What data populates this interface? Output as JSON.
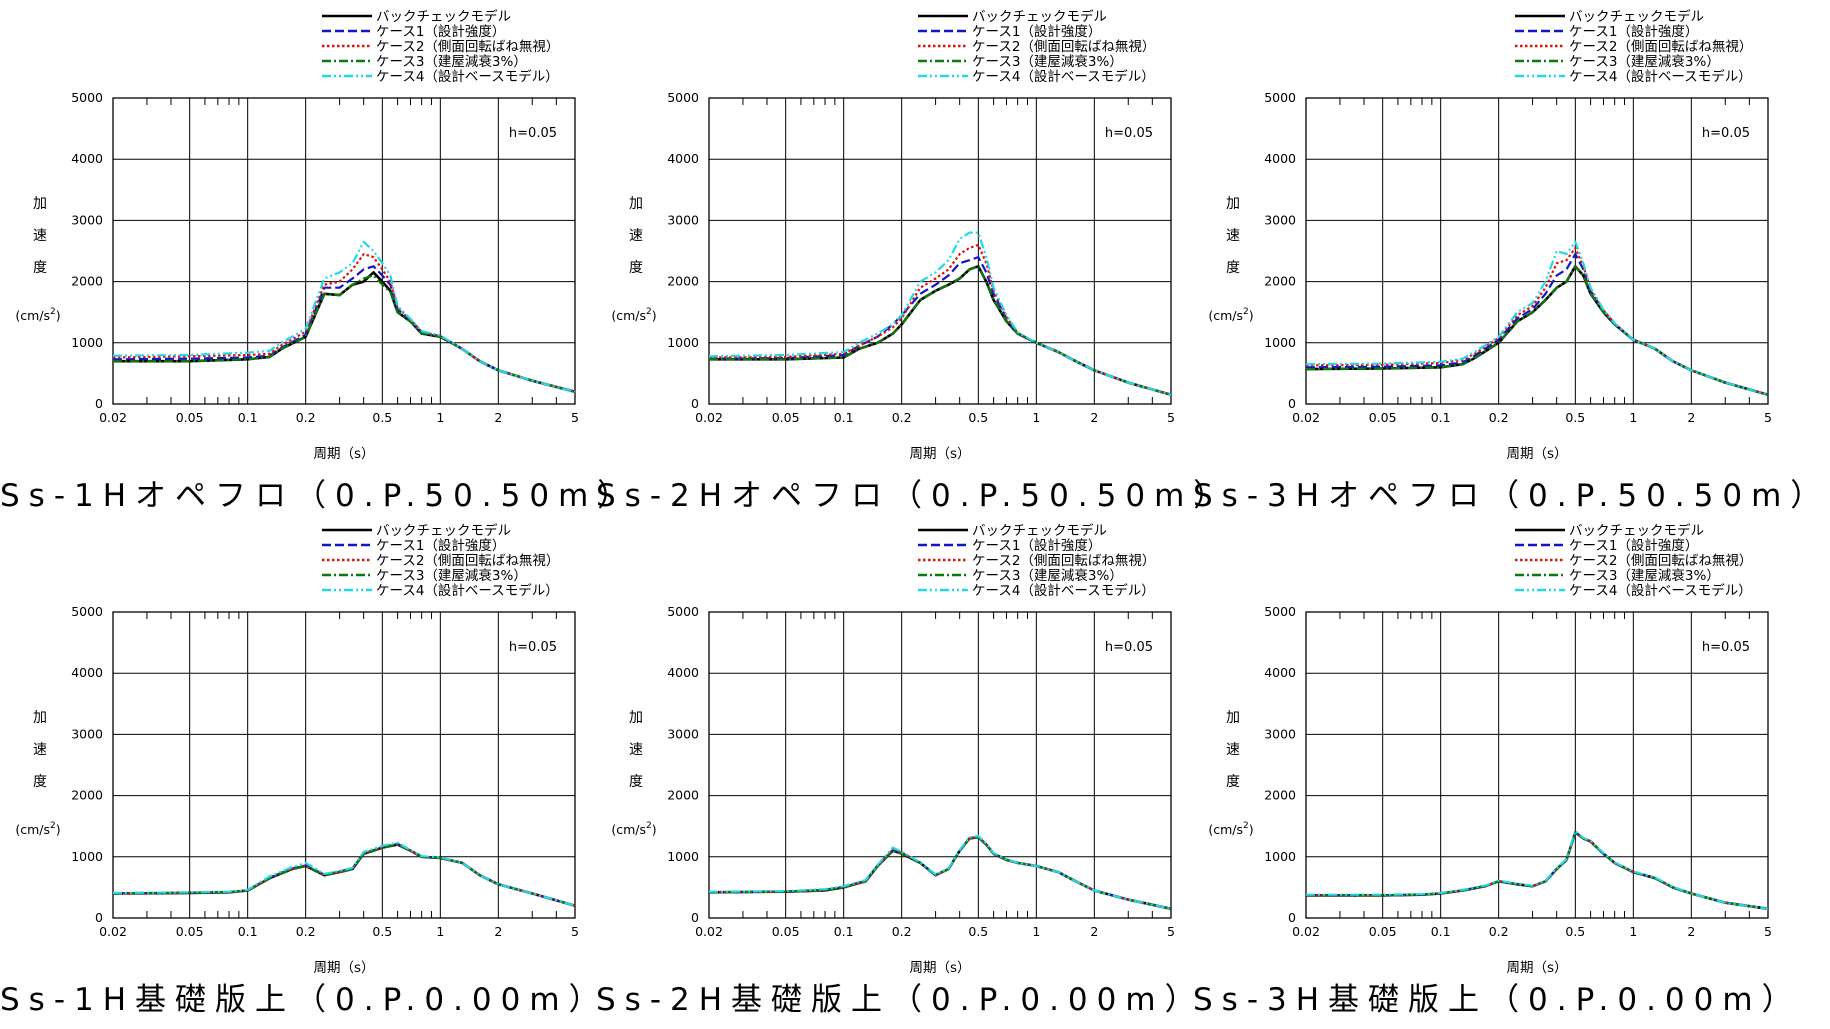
{
  "shared": {
    "legend": [
      {
        "name": "バックチェックモデル",
        "color": "#000000",
        "dash": ""
      },
      {
        "name": "ケース1（設計強度）",
        "color": "#1515c8",
        "dash": "9,4"
      },
      {
        "name": "ケース2（側面回転ばね無視）",
        "color": "#e01010",
        "dash": "2.5,2.5"
      },
      {
        "name": "ケース3（建屋減衰3%）",
        "color": "#0a7a0a",
        "dash": "9,3,2,3"
      },
      {
        "name": "ケース4（設計ベースモデル）",
        "color": "#22d8e8",
        "dash": "9,3,2,3,2,3"
      }
    ],
    "ylabel_chars": [
      "加",
      "速",
      "度"
    ],
    "yunit": "(cm/s",
    "yunit_sup": "2",
    "yunit_close": ")",
    "xlabel": "周期（s）",
    "xticks": [
      0.02,
      0.05,
      0.1,
      0.2,
      0.5,
      1,
      2,
      5
    ],
    "xtick_labels": [
      "0.02",
      "0.05",
      "0.1",
      "0.2",
      "0.5",
      "1",
      "2",
      "5"
    ],
    "yticks": [
      0,
      1000,
      2000,
      3000,
      4000,
      5000
    ],
    "ytick_labels": [
      "0",
      "1000",
      "2000",
      "3000",
      "4000",
      "5000"
    ],
    "xlim": [
      0.02,
      5
    ],
    "ylim": [
      0,
      5000
    ],
    "xscale": "log",
    "grid": true,
    "damping": "h=0.05"
  },
  "panels": [
    {
      "caption": "Ss-1Hオペフロ（0.P.50.50m）"
    },
    {
      "caption": "Ss-2Hオペフロ（0.P.50.50m）"
    },
    {
      "caption": "Ss-3Hオペフロ（0.P.50.50m）"
    },
    {
      "caption": "Ss-1H基礎版上（0.P.0.00m）"
    },
    {
      "caption": "Ss-2H基礎版上（0.P.0.00m）"
    },
    {
      "caption": "Ss-3H基礎版上（0.P.0.00m）"
    }
  ],
  "chart_data": [
    {
      "type": "line",
      "xscale": "log",
      "xlim": [
        0.02,
        5
      ],
      "ylim": [
        0,
        5000
      ],
      "title": "Ss-1Hオペフロ（0.P.50.50m）",
      "xlabel": "周期（s）",
      "ylabel": "加速度(cm/s2)",
      "x": [
        0.02,
        0.05,
        0.1,
        0.13,
        0.15,
        0.2,
        0.25,
        0.3,
        0.35,
        0.4,
        0.45,
        0.5,
        0.55,
        0.6,
        0.7,
        0.8,
        1,
        1.3,
        1.6,
        2,
        3,
        5
      ],
      "series": [
        {
          "name": "バックチェックモデル",
          "values": [
            700,
            700,
            730,
            770,
            900,
            1100,
            1800,
            1780,
            1950,
            2000,
            2150,
            2000,
            1850,
            1500,
            1350,
            1150,
            1100,
            900,
            700,
            550,
            380,
            200
          ]
        },
        {
          "name": "ケース1（設計強度）",
          "values": [
            730,
            740,
            760,
            790,
            920,
            1130,
            1900,
            1900,
            2050,
            2200,
            2250,
            2100,
            1950,
            1550,
            1370,
            1170,
            1110,
            900,
            700,
            550,
            380,
            200
          ]
        },
        {
          "name": "ケース2（側面回転ばね無視）",
          "values": [
            760,
            780,
            800,
            820,
            960,
            1180,
            1950,
            2000,
            2200,
            2450,
            2400,
            2200,
            2000,
            1580,
            1380,
            1180,
            1110,
            900,
            700,
            550,
            380,
            200
          ]
        },
        {
          "name": "ケース3（建屋減衰3%）",
          "values": [
            700,
            700,
            730,
            770,
            900,
            1100,
            1800,
            1780,
            1950,
            2050,
            2100,
            1950,
            1830,
            1500,
            1350,
            1150,
            1100,
            900,
            700,
            550,
            380,
            200
          ]
        },
        {
          "name": "ケース4（設計ベースモデル）",
          "values": [
            790,
            800,
            840,
            870,
            1000,
            1230,
            2050,
            2150,
            2300,
            2650,
            2500,
            2300,
            2100,
            1600,
            1390,
            1190,
            1120,
            900,
            700,
            550,
            380,
            200
          ]
        }
      ]
    },
    {
      "type": "line",
      "xscale": "log",
      "xlim": [
        0.02,
        5
      ],
      "ylim": [
        0,
        5000
      ],
      "title": "Ss-2Hオペフロ（0.P.50.50m）",
      "xlabel": "周期（s）",
      "ylabel": "加速度(cm/s2)",
      "x": [
        0.02,
        0.05,
        0.1,
        0.12,
        0.15,
        0.18,
        0.2,
        0.25,
        0.3,
        0.35,
        0.4,
        0.45,
        0.5,
        0.55,
        0.6,
        0.7,
        0.8,
        1,
        1.3,
        1.6,
        2,
        3,
        5
      ],
      "series": [
        {
          "name": "バックチェックモデル",
          "values": [
            730,
            730,
            760,
            900,
            1000,
            1150,
            1300,
            1700,
            1850,
            1950,
            2050,
            2200,
            2250,
            2000,
            1700,
            1350,
            1150,
            1000,
            850,
            700,
            550,
            350,
            150
          ]
        },
        {
          "name": "ケース1（設計強度）",
          "values": [
            740,
            750,
            800,
            950,
            1100,
            1300,
            1450,
            1800,
            1950,
            2100,
            2300,
            2350,
            2400,
            2150,
            1800,
            1400,
            1150,
            1000,
            850,
            700,
            550,
            350,
            150
          ]
        },
        {
          "name": "ケース2（側面回転ばね無視）",
          "values": [
            760,
            770,
            820,
            950,
            1100,
            1250,
            1400,
            1900,
            2050,
            2200,
            2450,
            2550,
            2600,
            2300,
            1850,
            1420,
            1160,
            1000,
            850,
            700,
            550,
            350,
            150
          ]
        },
        {
          "name": "ケース3（建屋減衰3%）",
          "values": [
            730,
            730,
            760,
            900,
            1000,
            1150,
            1300,
            1700,
            1850,
            1950,
            2050,
            2200,
            2250,
            2000,
            1700,
            1350,
            1150,
            1000,
            850,
            700,
            550,
            350,
            150
          ]
        },
        {
          "name": "ケース4（設計ベースモデル）",
          "values": [
            780,
            800,
            850,
            1000,
            1150,
            1300,
            1450,
            2000,
            2150,
            2350,
            2700,
            2800,
            2800,
            2400,
            1900,
            1450,
            1170,
            1000,
            850,
            700,
            550,
            350,
            150
          ]
        }
      ]
    },
    {
      "type": "line",
      "xscale": "log",
      "xlim": [
        0.02,
        5
      ],
      "ylim": [
        0,
        5000
      ],
      "title": "Ss-3Hオペフロ（0.P.50.50m）",
      "xlabel": "周期（s）",
      "ylabel": "加速度(cm/s2)",
      "x": [
        0.02,
        0.05,
        0.1,
        0.13,
        0.15,
        0.2,
        0.25,
        0.3,
        0.35,
        0.4,
        0.45,
        0.5,
        0.55,
        0.6,
        0.7,
        0.8,
        1,
        1.3,
        1.6,
        2,
        3,
        5
      ],
      "series": [
        {
          "name": "バックチェックモデル",
          "values": [
            570,
            580,
            600,
            650,
            750,
            1000,
            1350,
            1500,
            1700,
            1900,
            2000,
            2250,
            2100,
            1800,
            1500,
            1300,
            1050,
            900,
            700,
            550,
            350,
            150
          ]
        },
        {
          "name": "ケース1（設計強度）",
          "values": [
            600,
            610,
            630,
            680,
            790,
            1050,
            1400,
            1550,
            1800,
            2100,
            2200,
            2450,
            2200,
            1850,
            1520,
            1310,
            1050,
            900,
            700,
            550,
            350,
            150
          ]
        },
        {
          "name": "ケース2（側面回転ばね無視）",
          "values": [
            630,
            640,
            670,
            720,
            820,
            1080,
            1450,
            1600,
            1900,
            2300,
            2350,
            2550,
            2250,
            1880,
            1530,
            1320,
            1050,
            900,
            700,
            550,
            350,
            150
          ]
        },
        {
          "name": "ケース3（建屋減衰3%）",
          "values": [
            570,
            580,
            600,
            650,
            750,
            1000,
            1350,
            1500,
            1700,
            1900,
            2000,
            2250,
            2100,
            1800,
            1500,
            1300,
            1050,
            900,
            700,
            550,
            350,
            150
          ]
        },
        {
          "name": "ケース4（設計ベースモデル）",
          "values": [
            650,
            660,
            690,
            740,
            850,
            1100,
            1500,
            1650,
            2000,
            2500,
            2450,
            2650,
            2300,
            1900,
            1540,
            1320,
            1050,
            900,
            700,
            550,
            350,
            150
          ]
        }
      ]
    },
    {
      "type": "line",
      "xscale": "log",
      "xlim": [
        0.02,
        5
      ],
      "ylim": [
        0,
        5000
      ],
      "title": "Ss-1H基礎版上（0.P.0.00m）",
      "xlabel": "周期（s）",
      "ylabel": "加速度(cm/s2)",
      "x": [
        0.02,
        0.05,
        0.08,
        0.1,
        0.13,
        0.17,
        0.2,
        0.25,
        0.3,
        0.35,
        0.4,
        0.45,
        0.5,
        0.6,
        0.7,
        0.8,
        1,
        1.3,
        1.6,
        2,
        3,
        5
      ],
      "series": [
        {
          "name": "バックチェックモデル",
          "values": [
            400,
            410,
            420,
            450,
            650,
            800,
            850,
            700,
            750,
            800,
            1050,
            1100,
            1150,
            1200,
            1100,
            1000,
            980,
            900,
            700,
            550,
            400,
            200
          ]
        },
        {
          "name": "ケース1（設計強度）",
          "values": [
            400,
            410,
            420,
            450,
            660,
            810,
            860,
            710,
            760,
            810,
            1060,
            1110,
            1160,
            1210,
            1100,
            1000,
            980,
            900,
            700,
            550,
            400,
            200
          ]
        },
        {
          "name": "ケース2（側面回転ばね無視）",
          "values": [
            400,
            410,
            420,
            450,
            650,
            800,
            850,
            700,
            750,
            800,
            1050,
            1100,
            1150,
            1200,
            1100,
            1000,
            980,
            900,
            700,
            550,
            400,
            200
          ]
        },
        {
          "name": "ケース3（建屋減衰3%）",
          "values": [
            400,
            410,
            420,
            450,
            650,
            800,
            850,
            700,
            750,
            800,
            1050,
            1100,
            1150,
            1200,
            1100,
            1000,
            980,
            900,
            700,
            550,
            400,
            200
          ]
        },
        {
          "name": "ケース4（設計ベースモデル）",
          "values": [
            410,
            420,
            430,
            460,
            680,
            830,
            900,
            720,
            770,
            820,
            1080,
            1130,
            1180,
            1230,
            1110,
            1010,
            990,
            900,
            700,
            550,
            400,
            200
          ]
        }
      ]
    },
    {
      "type": "line",
      "xscale": "log",
      "xlim": [
        0.02,
        5
      ],
      "ylim": [
        0,
        5000
      ],
      "title": "Ss-2H基礎版上（0.P.0.00m）",
      "xlabel": "周期（s）",
      "ylabel": "加速度(cm/s2)",
      "x": [
        0.02,
        0.05,
        0.08,
        0.1,
        0.13,
        0.15,
        0.18,
        0.2,
        0.25,
        0.3,
        0.35,
        0.4,
        0.45,
        0.5,
        0.55,
        0.6,
        0.7,
        0.8,
        1,
        1.3,
        1.6,
        2,
        3,
        5
      ],
      "series": [
        {
          "name": "バックチェックモデル",
          "values": [
            420,
            430,
            450,
            500,
            600,
            850,
            1100,
            1050,
            900,
            700,
            800,
            1100,
            1300,
            1320,
            1200,
            1050,
            950,
            900,
            850,
            750,
            600,
            450,
            300,
            150
          ]
        },
        {
          "name": "ケース1（設計強度）",
          "values": [
            420,
            430,
            460,
            510,
            610,
            860,
            1110,
            1060,
            900,
            700,
            800,
            1100,
            1300,
            1330,
            1200,
            1050,
            950,
            900,
            850,
            750,
            600,
            450,
            300,
            150
          ]
        },
        {
          "name": "ケース2（側面回転ばね無視）",
          "values": [
            420,
            430,
            450,
            500,
            600,
            850,
            1120,
            1070,
            900,
            700,
            800,
            1100,
            1300,
            1320,
            1200,
            1050,
            950,
            900,
            850,
            750,
            600,
            450,
            300,
            150
          ]
        },
        {
          "name": "ケース3（建屋減衰3%）",
          "values": [
            420,
            430,
            450,
            500,
            600,
            850,
            1100,
            1050,
            900,
            700,
            800,
            1100,
            1300,
            1320,
            1200,
            1050,
            950,
            900,
            850,
            750,
            600,
            450,
            300,
            150
          ]
        },
        {
          "name": "ケース4（設計ベースモデル）",
          "values": [
            430,
            440,
            470,
            520,
            620,
            870,
            1150,
            1080,
            910,
            710,
            810,
            1110,
            1320,
            1340,
            1210,
            1060,
            960,
            900,
            850,
            750,
            600,
            450,
            300,
            150
          ]
        }
      ]
    },
    {
      "type": "line",
      "xscale": "log",
      "xlim": [
        0.02,
        5
      ],
      "ylim": [
        0,
        5000
      ],
      "title": "Ss-3H基礎版上（0.P.0.00m）",
      "xlabel": "周期（s）",
      "ylabel": "加速度(cm/s2)",
      "x": [
        0.02,
        0.05,
        0.08,
        0.1,
        0.13,
        0.17,
        0.2,
        0.25,
        0.3,
        0.35,
        0.4,
        0.45,
        0.5,
        0.55,
        0.6,
        0.7,
        0.8,
        1,
        1.3,
        1.6,
        2,
        3,
        5
      ],
      "series": [
        {
          "name": "バックチェックモデル",
          "values": [
            370,
            370,
            380,
            400,
            450,
            520,
            600,
            550,
            520,
            600,
            800,
            950,
            1400,
            1300,
            1250,
            1050,
            900,
            750,
            650,
            500,
            400,
            250,
            150
          ]
        },
        {
          "name": "ケース1（設計強度）",
          "values": [
            370,
            370,
            380,
            400,
            450,
            520,
            600,
            550,
            520,
            600,
            800,
            950,
            1400,
            1300,
            1250,
            1050,
            900,
            750,
            650,
            500,
            400,
            250,
            150
          ]
        },
        {
          "name": "ケース2（側面回転ばね無視）",
          "values": [
            370,
            370,
            380,
            400,
            450,
            520,
            600,
            550,
            520,
            600,
            800,
            950,
            1400,
            1300,
            1250,
            1050,
            900,
            750,
            650,
            500,
            400,
            250,
            150
          ]
        },
        {
          "name": "ケース3（建屋減衰3%）",
          "values": [
            370,
            370,
            380,
            400,
            450,
            520,
            600,
            550,
            520,
            600,
            800,
            950,
            1400,
            1300,
            1250,
            1050,
            900,
            750,
            650,
            500,
            400,
            250,
            150
          ]
        },
        {
          "name": "ケース4（設計ベースモデル）",
          "values": [
            380,
            380,
            390,
            410,
            460,
            530,
            610,
            560,
            530,
            610,
            810,
            960,
            1420,
            1310,
            1260,
            1060,
            910,
            760,
            660,
            510,
            400,
            250,
            150
          ]
        }
      ]
    }
  ]
}
